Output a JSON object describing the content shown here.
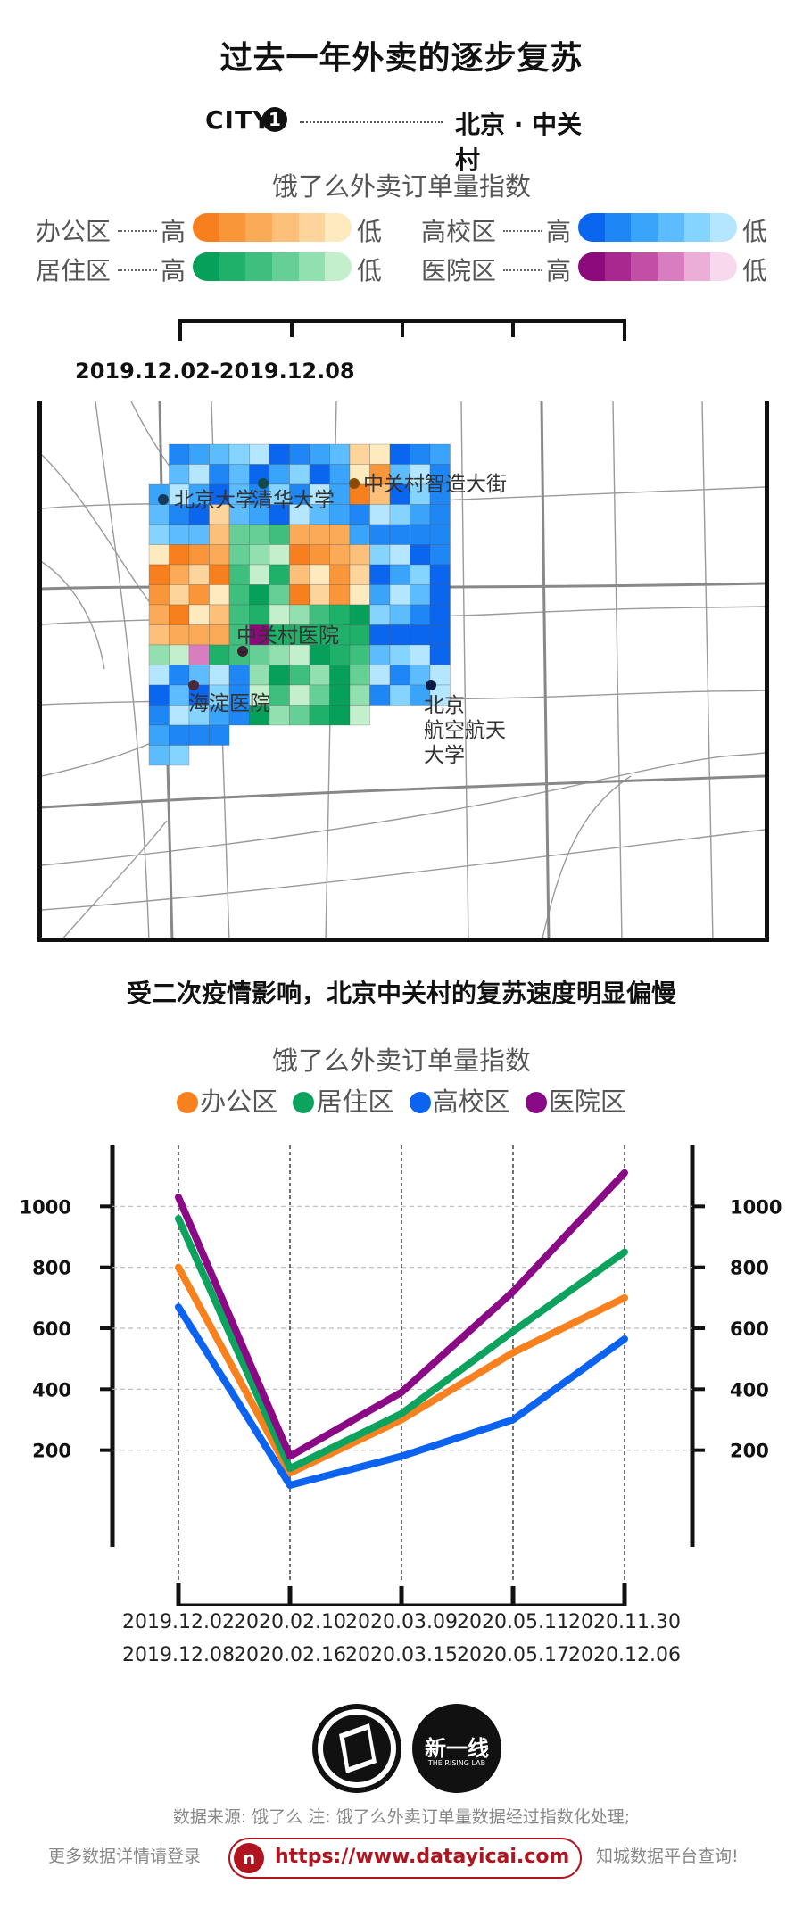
{
  "title": "过去一年外卖的逐步复苏",
  "city": {
    "label": "CITY",
    "number": "1",
    "name": "北京 · 中关村"
  },
  "map_legend": {
    "title": "饿了么外卖订单量指数",
    "high": "高",
    "low": "低",
    "zones": [
      {
        "name": "办公区",
        "colors": [
          "#f77f1d",
          "#f9963a",
          "#fbab57",
          "#fcc07a",
          "#fdd49c",
          "#feeabf"
        ]
      },
      {
        "name": "高校区",
        "colors": [
          "#0a66ee",
          "#1e86f5",
          "#3aa3fa",
          "#5cbcfd",
          "#85d3ff",
          "#b4e7ff"
        ]
      },
      {
        "name": "居住区",
        "colors": [
          "#07a05a",
          "#1fb069",
          "#3ebf7e",
          "#66cf95",
          "#92dfaf",
          "#c3efcd"
        ]
      },
      {
        "name": "医院区",
        "colors": [
          "#8c0a7c",
          "#a8288f",
          "#c24ea6",
          "#d87dbf",
          "#eaaed7",
          "#f8d8ec"
        ]
      }
    ]
  },
  "map": {
    "date_range": "2019.12.02-2019.12.08",
    "labels": [
      "北京大学",
      "清华大学",
      "中关村智造大街",
      "中关村医院",
      "海淀医院",
      "北京",
      "航空航天",
      "大学"
    ]
  },
  "subtitle": "受二次疫情影响，北京中关村的复苏速度明显偏慢",
  "chart_data": {
    "type": "line",
    "title": "饿了么外卖订单量指数",
    "categories": [
      "2019.12.02 2019.12.08",
      "2020.02.10 2020.02.16",
      "2020.03.09 2020.03.15",
      "2020.05.11 2020.05.17",
      "2020.11.30 2020.12.06"
    ],
    "x_ticks": [
      {
        "start": "2019.12.02",
        "end": "2019.12.08"
      },
      {
        "start": "2020.02.10",
        "end": "2020.02.16"
      },
      {
        "start": "2020.03.09",
        "end": "2020.03.15"
      },
      {
        "start": "2020.05.11",
        "end": "2020.05.17"
      },
      {
        "start": "2020.11.30",
        "end": "2020.12.06"
      }
    ],
    "series": [
      {
        "name": "办公区",
        "color": "#f7801f",
        "values": [
          800,
          125,
          300,
          520,
          700
        ]
      },
      {
        "name": "居住区",
        "color": "#0da35f",
        "values": [
          960,
          140,
          320,
          590,
          850
        ]
      },
      {
        "name": "高校区",
        "color": "#0b63ef",
        "values": [
          670,
          85,
          180,
          300,
          565
        ]
      },
      {
        "name": "医院区",
        "color": "#8a0a86",
        "values": [
          1030,
          180,
          390,
          720,
          1110
        ]
      }
    ],
    "y_ticks": [
      200,
      400,
      600,
      800,
      1000
    ],
    "ylim": [
      0,
      1200
    ],
    "xlabel": "",
    "ylabel": "",
    "grid": true,
    "legend_position": "top"
  },
  "footer": {
    "source": "数据来源: 饿了么   注: 饿了么外卖订单量数据经过指数化处理;",
    "more_prefix": "更多数据详情请登录",
    "url": "https://www.datayicai.com",
    "more_suffix": "知城数据平台查询!",
    "logo2_text": "新一线",
    "logo2_sub": "THE RISING LAB"
  }
}
